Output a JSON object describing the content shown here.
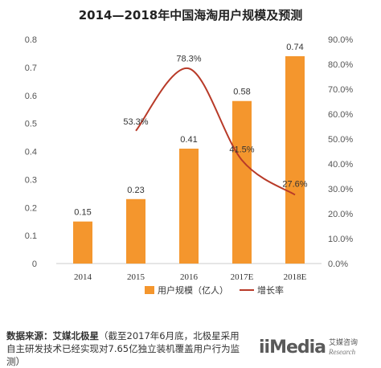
{
  "title": "2014—2018年中国海淘用户规模及预测",
  "legend": {
    "bar": "用户规模（亿人）",
    "line": "增长率"
  },
  "source": {
    "label": "数据来源：艾媒北极星",
    "text": "（截至2017年6月底，北极星采用自主研发技术已经实现对7.65亿独立装机覆盖用户行为监测）"
  },
  "logo": {
    "brand": "iiMedia",
    "cn": "艾媒咨询",
    "en": "Research"
  },
  "colors": {
    "bar": "#F4962D",
    "line": "#B83A28"
  },
  "chart_data": {
    "type": "bar",
    "title": "2014—2018年中国海淘用户规模及预测",
    "categories": [
      "2014",
      "2015",
      "2016",
      "2017E",
      "2018E"
    ],
    "series": [
      {
        "name": "用户规模（亿人）",
        "type": "bar",
        "axis": "left",
        "values": [
          0.15,
          0.23,
          0.41,
          0.58,
          0.74
        ],
        "labels": [
          "0.15",
          "0.23",
          "0.41",
          "0.58",
          "0.74"
        ]
      },
      {
        "name": "增长率",
        "type": "line",
        "axis": "right",
        "values": [
          null,
          53.3,
          78.3,
          41.5,
          27.6
        ],
        "labels": [
          "",
          "53.3%",
          "78.3%",
          "41.5%",
          "27.6%"
        ]
      }
    ],
    "y_left": {
      "min": 0,
      "max": 0.8,
      "ticks": [
        "0",
        "0.1",
        "0.2",
        "0.3",
        "0.4",
        "0.5",
        "0.6",
        "0.7",
        "0.8"
      ]
    },
    "y_right": {
      "min": 0,
      "max": 90,
      "ticks": [
        "0.0%",
        "10.0%",
        "20.0%",
        "30.0%",
        "40.0%",
        "50.0%",
        "60.0%",
        "70.0%",
        "80.0%",
        "90.0%"
      ]
    },
    "grid": false,
    "legend_position": "bottom"
  }
}
